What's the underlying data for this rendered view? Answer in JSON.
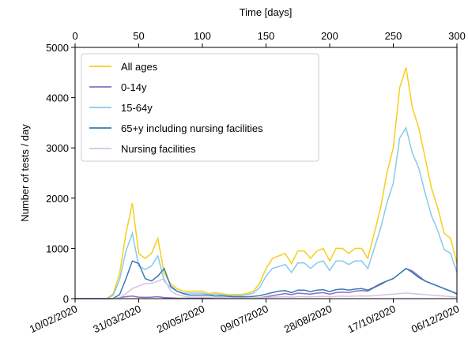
{
  "chart_data": {
    "type": "line",
    "x_label": "Time [days]",
    "y_label": "Number of tests / day",
    "x": [
      0,
      5,
      10,
      15,
      20,
      25,
      30,
      35,
      40,
      45,
      50,
      55,
      60,
      65,
      70,
      75,
      80,
      85,
      90,
      95,
      100,
      105,
      110,
      115,
      120,
      125,
      130,
      135,
      140,
      145,
      150,
      155,
      160,
      165,
      170,
      175,
      180,
      185,
      190,
      195,
      200,
      205,
      210,
      215,
      220,
      225,
      230,
      235,
      240,
      245,
      250,
      255,
      260,
      265,
      270,
      275,
      280,
      285,
      290,
      295,
      300
    ],
    "series": [
      {
        "name": "All ages",
        "color": "#f5cf1d",
        "values": [
          0,
          0,
          0,
          0,
          0,
          0,
          100,
          500,
          1300,
          1900,
          900,
          800,
          900,
          1200,
          500,
          300,
          200,
          150,
          150,
          150,
          150,
          100,
          120,
          100,
          80,
          80,
          80,
          100,
          150,
          300,
          600,
          800,
          850,
          900,
          700,
          950,
          950,
          800,
          950,
          1000,
          750,
          1000,
          1000,
          900,
          1000,
          1000,
          800,
          1300,
          1800,
          2500,
          3000,
          4200,
          4600,
          3800,
          3400,
          2800,
          2200,
          1800,
          1300,
          1200,
          700
        ]
      },
      {
        "name": "0-14y",
        "color": "#8a6fc4",
        "values": [
          0,
          0,
          0,
          0,
          0,
          0,
          5,
          20,
          40,
          50,
          30,
          25,
          30,
          40,
          20,
          15,
          10,
          8,
          8,
          8,
          8,
          5,
          6,
          5,
          4,
          4,
          4,
          5,
          8,
          15,
          40,
          60,
          80,
          100,
          80,
          110,
          100,
          90,
          110,
          120,
          90,
          120,
          130,
          120,
          150,
          160,
          150,
          220,
          280,
          350,
          400,
          500,
          600,
          550,
          450,
          350,
          300,
          250,
          200,
          150,
          100
        ]
      },
      {
        "name": "15-64y",
        "color": "#86cbe9",
        "values": [
          0,
          0,
          0,
          0,
          0,
          0,
          70,
          380,
          950,
          1300,
          650,
          580,
          650,
          850,
          350,
          220,
          150,
          110,
          110,
          110,
          110,
          75,
          90,
          75,
          60,
          60,
          60,
          75,
          110,
          220,
          450,
          600,
          640,
          680,
          520,
          710,
          710,
          600,
          710,
          750,
          560,
          750,
          750,
          680,
          750,
          750,
          600,
          1000,
          1400,
          1900,
          2300,
          3200,
          3400,
          2900,
          2600,
          2100,
          1650,
          1350,
          980,
          900,
          520
        ]
      },
      {
        "name": "65+y including nursing facilities",
        "color": "#3a7bb0",
        "values": [
          0,
          0,
          0,
          0,
          0,
          0,
          5,
          80,
          400,
          750,
          700,
          400,
          350,
          450,
          600,
          250,
          150,
          100,
          70,
          70,
          70,
          70,
          50,
          55,
          45,
          35,
          35,
          35,
          45,
          60,
          90,
          120,
          150,
          160,
          120,
          170,
          170,
          140,
          170,
          180,
          140,
          180,
          190,
          170,
          190,
          200,
          170,
          230,
          300,
          350,
          400,
          500,
          600,
          520,
          420,
          350,
          300,
          250,
          200,
          150,
          90
        ]
      },
      {
        "name": "Nursing facilities",
        "color": "#d8c2e2",
        "values": [
          0,
          0,
          0,
          0,
          0,
          0,
          0,
          20,
          100,
          200,
          250,
          300,
          300,
          350,
          400,
          150,
          80,
          50,
          30,
          30,
          30,
          30,
          20,
          20,
          15,
          15,
          15,
          15,
          15,
          20,
          25,
          30,
          35,
          40,
          30,
          40,
          40,
          35,
          40,
          45,
          35,
          45,
          50,
          45,
          50,
          55,
          50,
          60,
          70,
          80,
          90,
          100,
          110,
          100,
          90,
          80,
          70,
          60,
          50,
          40,
          30
        ]
      }
    ],
    "xlim": [
      0,
      300
    ],
    "xticks": [
      0,
      50,
      100,
      150,
      200,
      250,
      300
    ],
    "date_ticks": [
      {
        "value": 0,
        "label": "10/02/2020"
      },
      {
        "value": 50,
        "label": "31/03/2020"
      },
      {
        "value": 100,
        "label": "20/05/2020"
      },
      {
        "value": 150,
        "label": "09/07/2020"
      },
      {
        "value": 200,
        "label": "28/08/2020"
      },
      {
        "value": 250,
        "label": "17/10/2020"
      },
      {
        "value": 300,
        "label": "06/12/2020"
      }
    ],
    "ylim": [
      0,
      5000
    ],
    "yticks": [
      0,
      1000,
      2000,
      3000,
      4000,
      5000
    ],
    "legend": "upper left"
  }
}
